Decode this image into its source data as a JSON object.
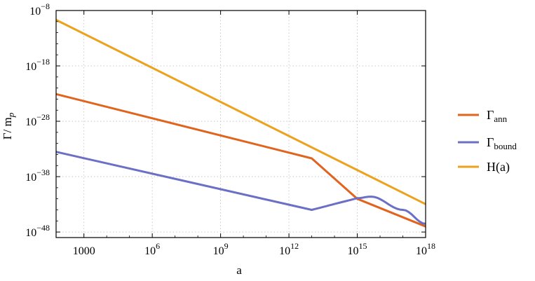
{
  "chart_data": {
    "type": "line",
    "xlabel": "a",
    "ylabel": "Γ/ m",
    "ylabel_sub": "p",
    "x_scale": "log",
    "y_scale": "log",
    "xlim": [
      60,
      1e+18
    ],
    "ylim": [
      1e-49,
      1e-08
    ],
    "grid": true,
    "legend_placement": "right",
    "x_ticks": [
      {
        "value": 1000,
        "label": "1000",
        "base": "",
        "exp": ""
      },
      {
        "value": 1000000.0,
        "label": "",
        "base": "10",
        "exp": "6"
      },
      {
        "value": 1000000000.0,
        "label": "",
        "base": "10",
        "exp": "9"
      },
      {
        "value": 1000000000000.0,
        "label": "",
        "base": "10",
        "exp": "12"
      },
      {
        "value": 1000000000000000.0,
        "label": "",
        "base": "10",
        "exp": "15"
      },
      {
        "value": 1e+18,
        "label": "",
        "base": "10",
        "exp": "18"
      }
    ],
    "y_ticks": [
      {
        "value": 1e-08,
        "base": "10",
        "exp": "−8"
      },
      {
        "value": 1e-18,
        "base": "10",
        "exp": "−18"
      },
      {
        "value": 1e-28,
        "base": "10",
        "exp": "−28"
      },
      {
        "value": 1e-38,
        "base": "10",
        "exp": "−38"
      },
      {
        "value": 1e-48,
        "base": "10",
        "exp": "−48"
      }
    ],
    "series": [
      {
        "name": "Γ",
        "name_sub": "ann",
        "color": "#e1641e",
        "x": [
          60,
          10000000000000.0,
          1000000000000000.0,
          1e+18
        ],
        "y": [
          8e-24,
          2e-35,
          1e-42,
          1e-47
        ]
      },
      {
        "name": "Γ",
        "name_sub": "bound",
        "color": "#6b6fc5",
        "x": [
          60,
          10000000000000.0,
          1000000000000000.0,
          4000000000000000.0,
          1e+17,
          1e+18
        ],
        "y": [
          3e-34,
          1e-44,
          1.3e-42,
          2.5e-42,
          1e-44,
          3e-47
        ]
      },
      {
        "name": "H(a)",
        "name_sub": "",
        "color": "#eba21e",
        "x": [
          60,
          1e+18
        ],
        "y": [
          2e-10,
          1.1e-43
        ]
      }
    ]
  }
}
